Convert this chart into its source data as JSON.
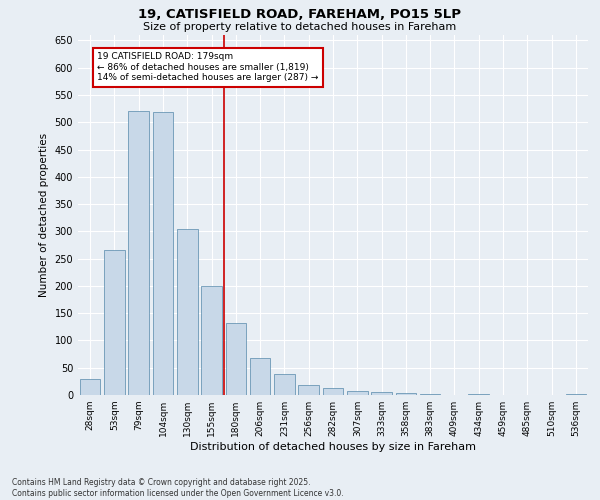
{
  "title": "19, CATISFIELD ROAD, FAREHAM, PO15 5LP",
  "subtitle": "Size of property relative to detached houses in Fareham",
  "xlabel": "Distribution of detached houses by size in Fareham",
  "ylabel": "Number of detached properties",
  "categories": [
    "28sqm",
    "53sqm",
    "79sqm",
    "104sqm",
    "130sqm",
    "155sqm",
    "180sqm",
    "206sqm",
    "231sqm",
    "256sqm",
    "282sqm",
    "307sqm",
    "333sqm",
    "358sqm",
    "383sqm",
    "409sqm",
    "434sqm",
    "459sqm",
    "485sqm",
    "510sqm",
    "536sqm"
  ],
  "values": [
    30,
    265,
    520,
    518,
    305,
    200,
    132,
    68,
    38,
    18,
    13,
    8,
    6,
    4,
    2,
    0,
    1,
    0,
    0,
    0,
    2
  ],
  "bar_color": "#c8d8e8",
  "bar_edge_color": "#5588aa",
  "marker_label": "19 CATISFIELD ROAD: 179sqm",
  "annotation_line1": "← 86% of detached houses are smaller (1,819)",
  "annotation_line2": "14% of semi-detached houses are larger (287) →",
  "annotation_box_color": "#ffffff",
  "annotation_box_edge_color": "#cc0000",
  "vline_color": "#cc0000",
  "ylim": [
    0,
    660
  ],
  "yticks": [
    0,
    50,
    100,
    150,
    200,
    250,
    300,
    350,
    400,
    450,
    500,
    550,
    600,
    650
  ],
  "background_color": "#e8eef4",
  "grid_color": "#ffffff",
  "footnote1": "Contains HM Land Registry data © Crown copyright and database right 2025.",
  "footnote2": "Contains public sector information licensed under the Open Government Licence v3.0."
}
